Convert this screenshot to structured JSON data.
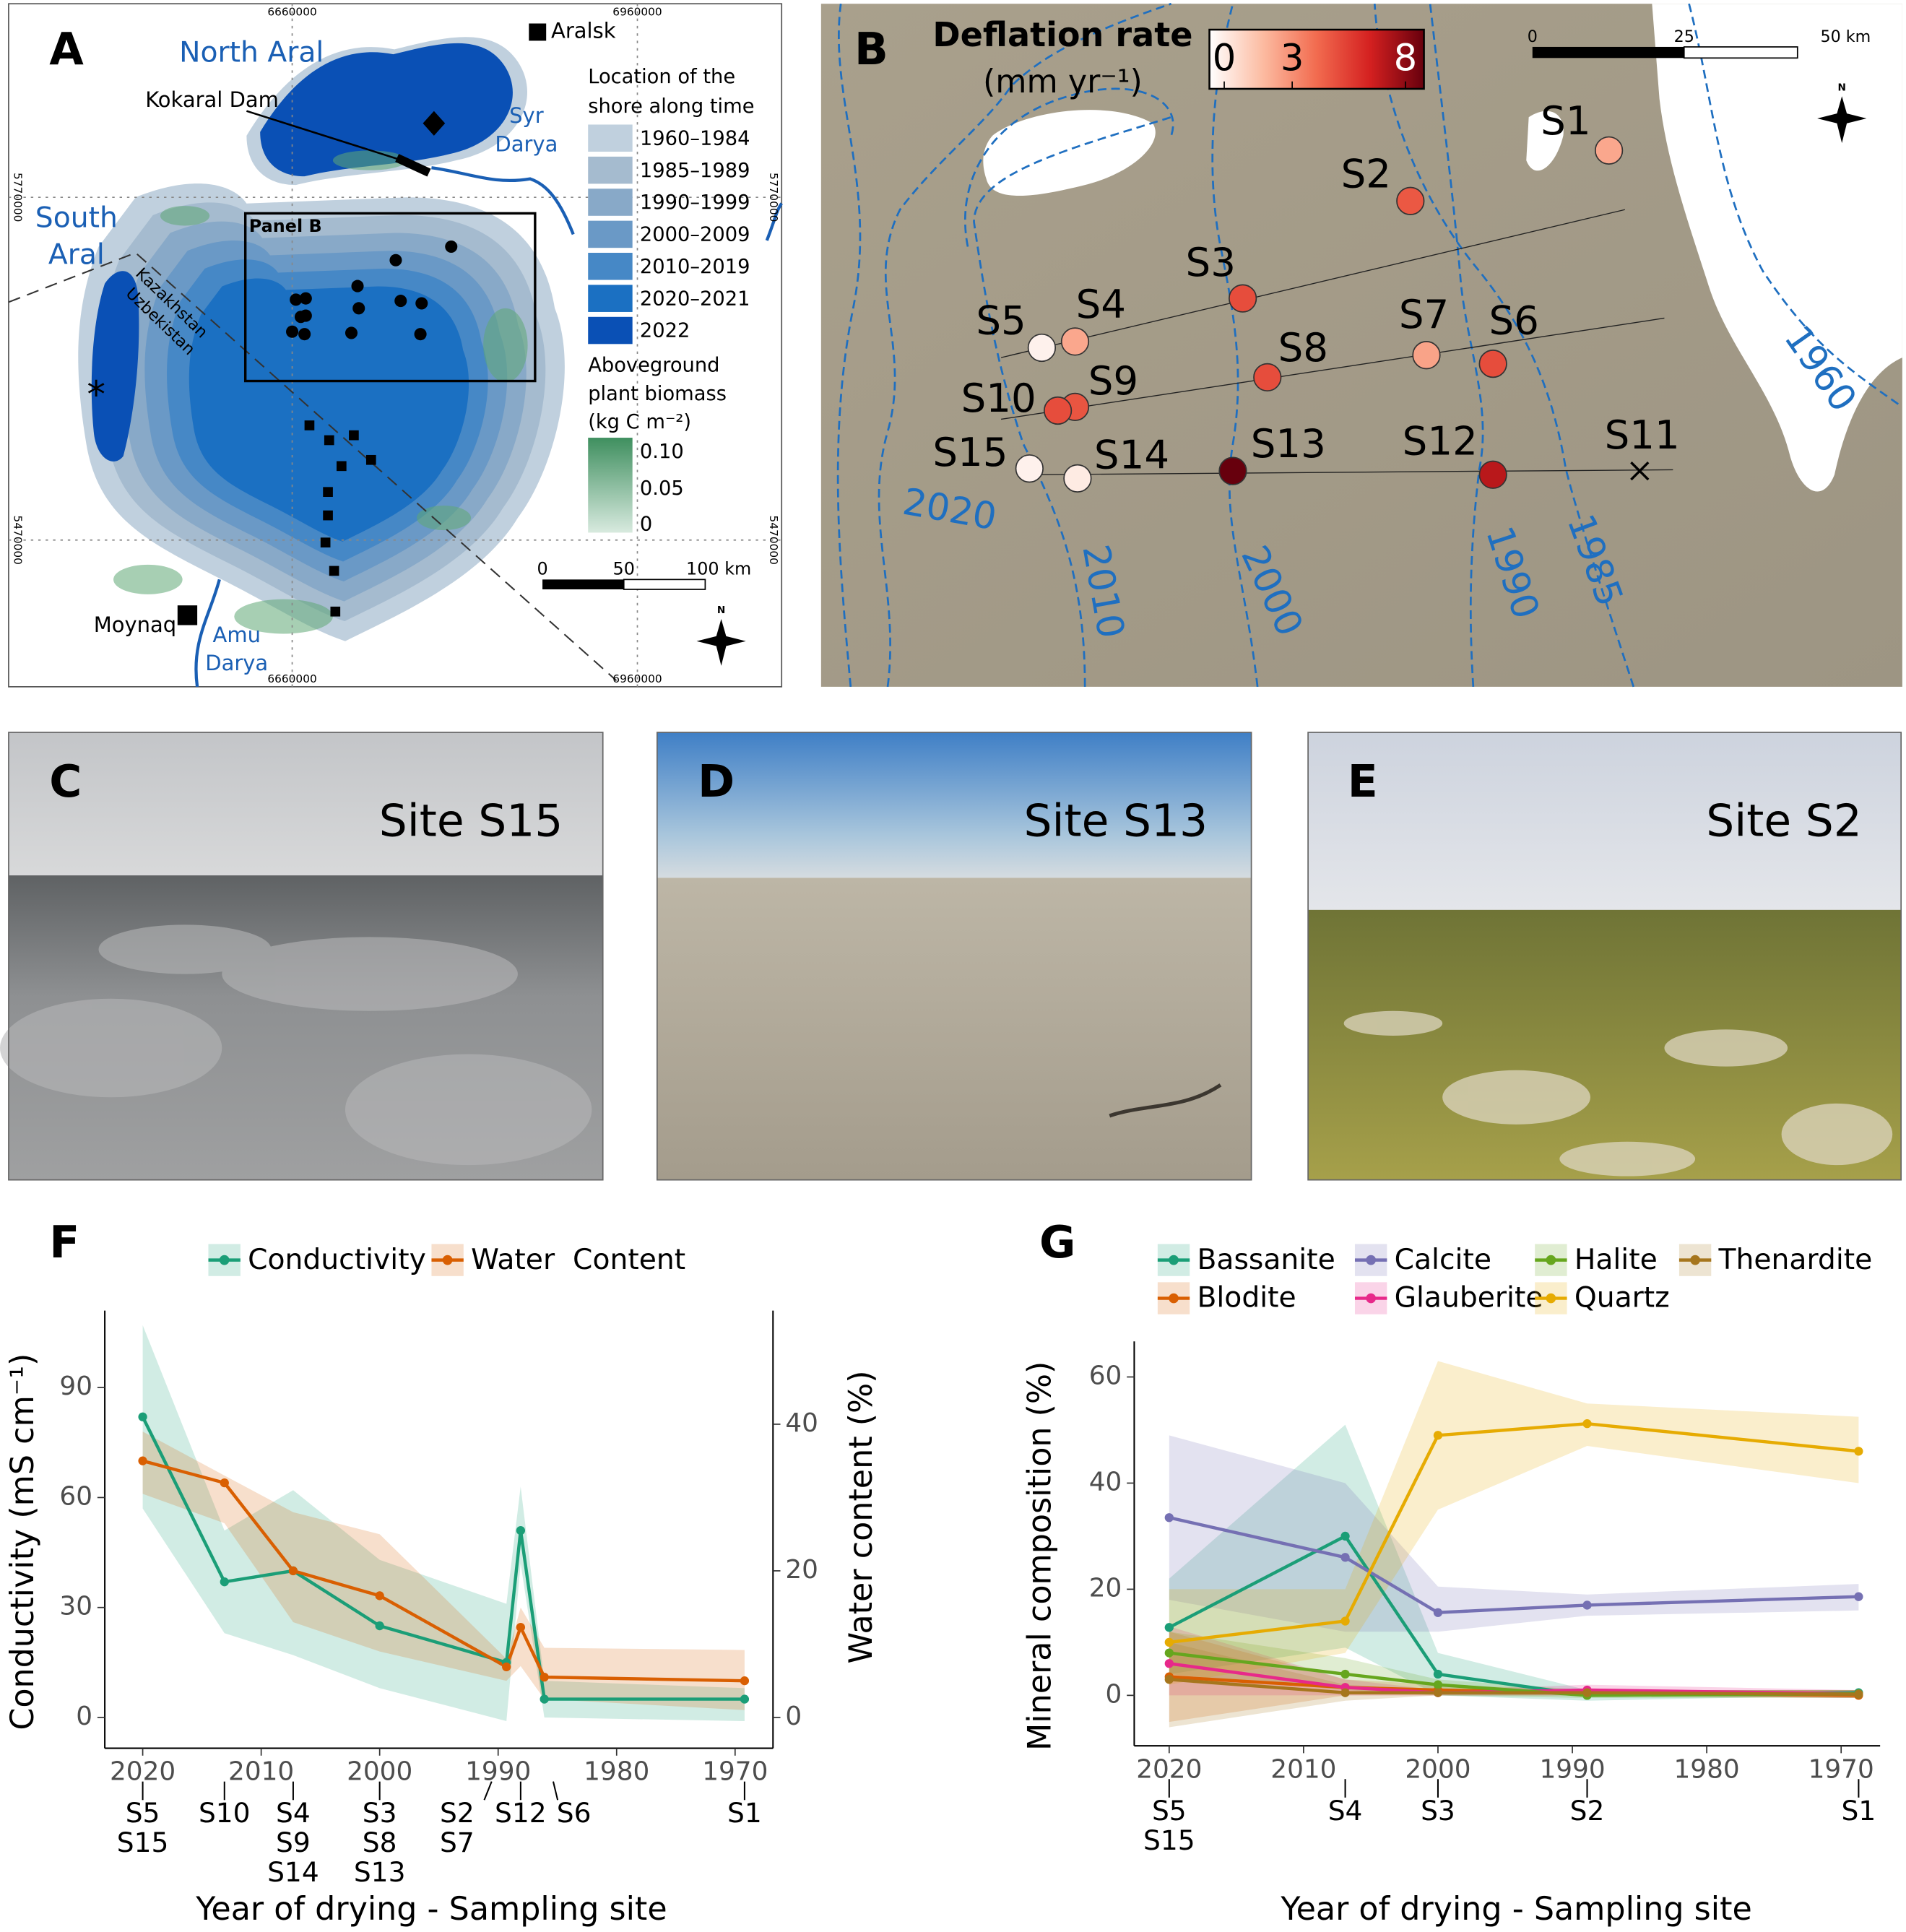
{
  "panels": {
    "A": {
      "label": "A",
      "north_aral": "North Aral",
      "south_aral": [
        "South",
        "Aral"
      ],
      "aralsk": "Aralsk",
      "kokaral_dam": "Kokaral Dam",
      "syr_darya": [
        "Syr",
        "Darya"
      ],
      "amu_darya": [
        "Amu",
        "Darya"
      ],
      "moynaq": "Moynaq",
      "border": [
        "Kazakhstan",
        "Uzbekistan"
      ],
      "panel_b": "Panel B",
      "shore_title": [
        "Location of the",
        "shore along time"
      ],
      "shore_legend": [
        {
          "label": "1960–1984",
          "color": "#c0d0de"
        },
        {
          "label": "1985–1989",
          "color": "#a5bbcf"
        },
        {
          "label": "1990–1999",
          "color": "#88a9c8"
        },
        {
          "label": "2000–2009",
          "color": "#6a99c6"
        },
        {
          "label": "2010–2019",
          "color": "#4688c6"
        },
        {
          "label": "2020–2021",
          "color": "#1b70c2"
        },
        {
          "label": "2022",
          "color": "#0a50b5"
        }
      ],
      "biomass_title": [
        "Aboveground",
        "plant biomass",
        "(kg C m⁻²)"
      ],
      "biomass_ticks": [
        "0.10",
        "0.05",
        "0"
      ],
      "biomass_colors": [
        "#3f8f5f",
        "#d8eadf"
      ],
      "scale_labels": [
        "0",
        "50",
        "100 km"
      ],
      "x_coords": [
        "6660000",
        "6960000"
      ],
      "y_coords": [
        "5770000",
        "5470000"
      ],
      "north": "N"
    },
    "B": {
      "label": "B",
      "title": "Deflation rate",
      "unit": "(mm yr⁻¹)",
      "clim": [
        0,
        8
      ],
      "cticks": [
        0,
        3,
        8
      ],
      "colormap": [
        "#ffffff",
        "#fcbba1",
        "#f26b4f",
        "#d42020",
        "#67000d"
      ],
      "scale_labels": [
        "0",
        "25",
        "50 km"
      ],
      "north": "N",
      "sites": [
        {
          "name": "S1",
          "rate": 2.5
        },
        {
          "name": "S2",
          "rate": 4.5
        },
        {
          "name": "S3",
          "rate": 4.8
        },
        {
          "name": "S4",
          "rate": 2.5
        },
        {
          "name": "S5",
          "rate": 0.4
        },
        {
          "name": "S6",
          "rate": 4.8
        },
        {
          "name": "S7",
          "rate": 2.6
        },
        {
          "name": "S8",
          "rate": 4.8
        },
        {
          "name": "S9",
          "rate": 4.6
        },
        {
          "name": "S10",
          "rate": 4.8
        },
        {
          "name": "S11",
          "rate": null
        },
        {
          "name": "S12",
          "rate": 6.5
        },
        {
          "name": "S13",
          "rate": 8
        },
        {
          "name": "S14",
          "rate": 0.6
        },
        {
          "name": "S15",
          "rate": 0.4
        }
      ],
      "contours": [
        "1960",
        "2020",
        "2010",
        "2000",
        "1990",
        "1985"
      ]
    },
    "C": {
      "label": "C",
      "caption": "Site S15"
    },
    "D": {
      "label": "D",
      "caption": "Site S13"
    },
    "E": {
      "label": "E",
      "caption": "Site S2"
    }
  },
  "chart_data": [
    {
      "type": "line",
      "panel_label": "F",
      "xlabel": "Year of drying - Sampling site",
      "ylabel": "Conductivity (mS cm⁻¹)",
      "y2label": "Water content (%)",
      "x": [
        2020,
        2013.1,
        2007.3,
        2000,
        1989.3,
        1988.1,
        1986.1,
        1969.2
      ],
      "site_labels": [
        [
          "S5",
          "S15"
        ],
        [
          "S10"
        ],
        [
          "S4",
          "S9",
          "S14"
        ],
        [
          "S3",
          "S8",
          "S13"
        ],
        [
          "S2",
          "S7"
        ],
        [
          "S12"
        ],
        [
          "S6"
        ],
        [
          "S1"
        ]
      ],
      "xlim": [
        2023.2,
        1966.8
      ],
      "xticks": [
        2020,
        2010,
        2000,
        1990,
        1980,
        1970
      ],
      "ylim": [
        -8.4,
        111
      ],
      "yticks": [
        0,
        30,
        60,
        90
      ],
      "y2lim": [
        -4.2,
        55.5
      ],
      "y2ticks": [
        0,
        20,
        40
      ],
      "series": [
        {
          "name": "Conductivity",
          "color": "#1b9e77",
          "values": [
            82,
            37,
            40,
            25,
            15,
            51,
            5,
            5
          ],
          "lower": [
            57,
            23,
            17,
            8,
            -1,
            42,
            0,
            -1
          ],
          "upper": [
            107,
            51,
            62,
            43,
            31,
            63,
            10,
            8
          ]
        },
        {
          "name": "Water  Content",
          "color": "#d95f02",
          "axis": "y2",
          "values": [
            35,
            32,
            20,
            16.6,
            6.9,
            12.3,
            5.5,
            5
          ],
          "lower": [
            30.5,
            26.5,
            13,
            9,
            5,
            7,
            2.5,
            1
          ],
          "upper": [
            39,
            33,
            28,
            25,
            8,
            15,
            9.5,
            9.2
          ]
        }
      ]
    },
    {
      "type": "line",
      "panel_label": "G",
      "xlabel": "Year of drying - Sampling site",
      "ylabel": "Mineral composition (%)",
      "x": [
        2020,
        2006.9,
        2000,
        1988.9,
        1968.7
      ],
      "site_labels": [
        [
          "S5",
          "S15"
        ],
        [
          "S4"
        ],
        [
          "S3"
        ],
        [
          "S2"
        ],
        [
          "S1"
        ]
      ],
      "xlim": [
        2022.6,
        1967.1
      ],
      "xticks": [
        2020,
        2010,
        2000,
        1990,
        1980,
        1970
      ],
      "ylim": [
        -9.5,
        66.7
      ],
      "yticks": [
        0,
        20,
        40,
        60
      ],
      "series": [
        {
          "name": "Bassanite",
          "color": "#1b9e77",
          "values": [
            12.8,
            30,
            4,
            0,
            0.5
          ],
          "lower": [
            4,
            9,
            0,
            -1,
            0
          ],
          "upper": [
            22,
            51,
            8,
            1,
            1
          ]
        },
        {
          "name": "Blodite",
          "color": "#d95f02",
          "values": [
            3.5,
            1.5,
            1,
            0.5,
            0
          ],
          "lower": [
            -5,
            0,
            0,
            0,
            -0.5
          ],
          "upper": [
            12,
            3,
            2,
            1,
            1
          ]
        },
        {
          "name": "Calcite",
          "color": "#7570b3",
          "values": [
            33.5,
            26,
            15.6,
            17,
            18.6
          ],
          "lower": [
            18,
            12,
            12,
            15,
            16
          ],
          "upper": [
            49,
            40,
            20.5,
            19,
            21
          ]
        },
        {
          "name": "Glauberite",
          "color": "#e7298a",
          "values": [
            6,
            1.5,
            0.5,
            1,
            0.3
          ],
          "lower": [
            0,
            0,
            0,
            0,
            -0.5
          ],
          "upper": [
            13,
            3,
            1,
            2,
            1
          ]
        },
        {
          "name": "Halite",
          "color": "#66a61e",
          "values": [
            8,
            4,
            2,
            0,
            0.3
          ],
          "lower": [
            4,
            1,
            0,
            -0.5,
            -0.5
          ],
          "upper": [
            12,
            7,
            3,
            1,
            1
          ]
        },
        {
          "name": "Quartz",
          "color": "#e6ab02",
          "values": [
            10,
            14,
            49,
            51.2,
            46
          ],
          "lower": [
            2,
            8,
            35,
            47,
            40
          ],
          "upper": [
            20,
            20,
            63,
            55,
            52.5
          ]
        },
        {
          "name": "Thenardite",
          "color": "#a6761d",
          "values": [
            3,
            0.5,
            0.5,
            0.5,
            0.2
          ],
          "lower": [
            -6,
            -1,
            0,
            0,
            -0.5
          ],
          "upper": [
            10,
            2,
            1,
            1,
            1
          ]
        }
      ]
    }
  ]
}
